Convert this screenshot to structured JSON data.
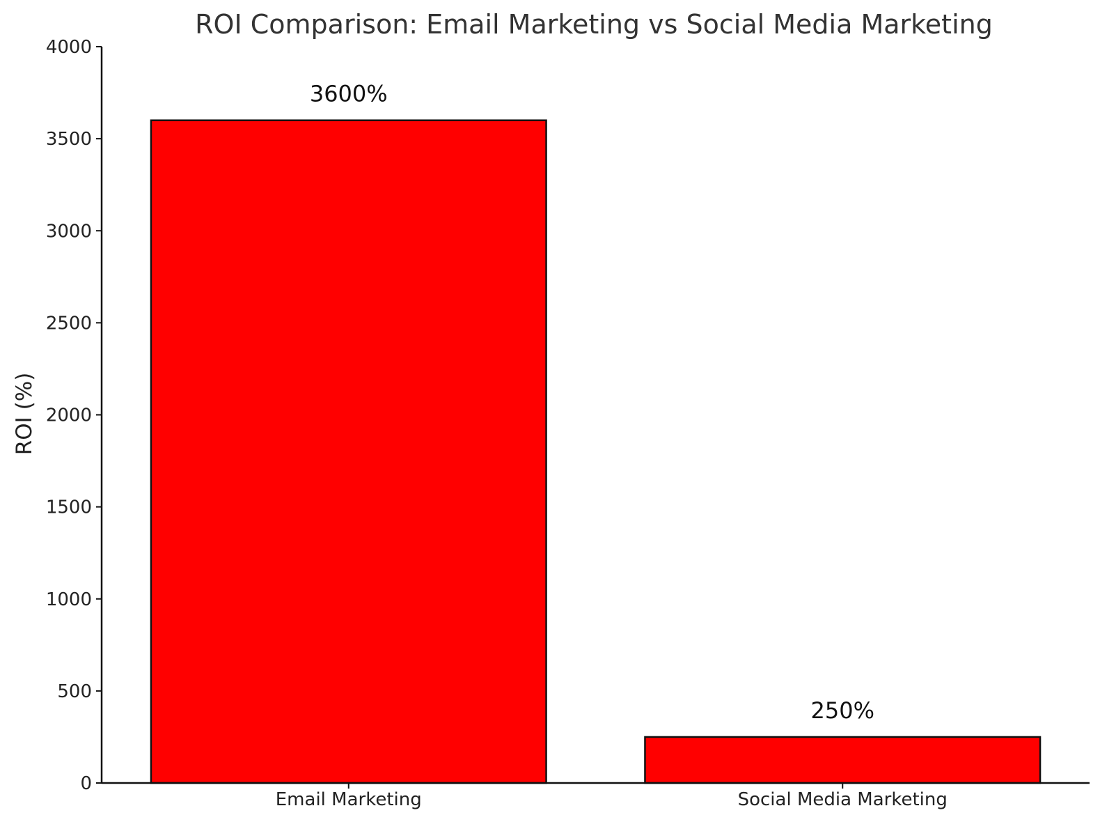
{
  "chart_data": {
    "type": "bar",
    "title": "ROI Comparison: Email Marketing vs Social Media Marketing",
    "xlabel": "",
    "ylabel": "ROI (%)",
    "categories": [
      "Email Marketing",
      "Social Media Marketing"
    ],
    "values": [
      3600,
      250
    ],
    "data_labels": [
      "3600%",
      "250%"
    ],
    "ylim": [
      0,
      4000
    ],
    "yticks": [
      0,
      500,
      1000,
      1500,
      2000,
      2500,
      3000,
      3500,
      4000
    ],
    "ytick_labels": [
      "0",
      "500",
      "1000",
      "1500",
      "2000",
      "2500",
      "3000",
      "3500",
      "4000"
    ],
    "grid": false,
    "legend": "none",
    "bar_color": "#ff0000",
    "bar_edge_color": "#111111"
  }
}
